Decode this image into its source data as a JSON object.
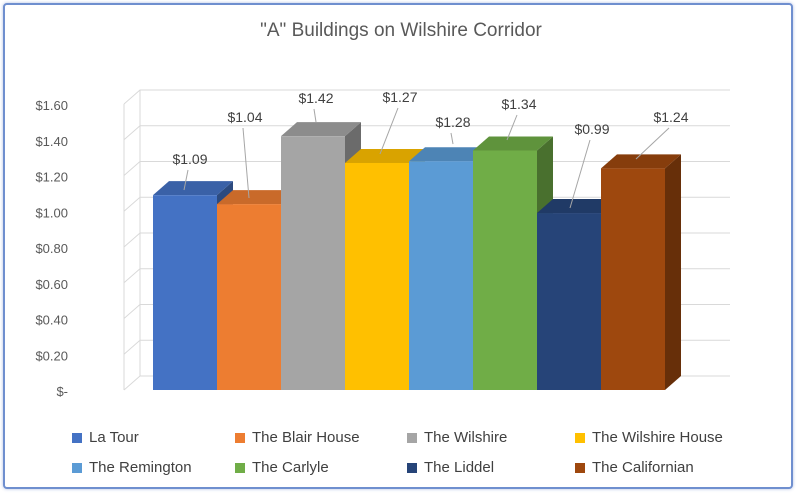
{
  "chart_data": {
    "type": "bar",
    "title": "\"A\" Buildings on Wilshire Corridor",
    "xlabel": "",
    "ylabel": "",
    "ylim": [
      0,
      1.6
    ],
    "yticks": [
      {
        "value": 0,
        "label": "$-"
      },
      {
        "value": 0.2,
        "label": "$0.20"
      },
      {
        "value": 0.4,
        "label": "$0.40"
      },
      {
        "value": 0.6,
        "label": "$0.60"
      },
      {
        "value": 0.8,
        "label": "$0.80"
      },
      {
        "value": 1.0,
        "label": "$1.00"
      },
      {
        "value": 1.2,
        "label": "$1.20"
      },
      {
        "value": 1.4,
        "label": "$1.40"
      },
      {
        "value": 1.6,
        "label": "$1.60"
      }
    ],
    "grid": true,
    "legend_position": "bottom",
    "series": [
      {
        "name": "La Tour",
        "value": 1.09,
        "label": "$1.09",
        "color": "#4472c4"
      },
      {
        "name": "The Blair House",
        "value": 1.04,
        "label": "$1.04",
        "color": "#ed7d31"
      },
      {
        "name": "The Wilshire",
        "value": 1.42,
        "label": "$1.42",
        "color": "#a5a5a5"
      },
      {
        "name": "The Wilshire House",
        "value": 1.27,
        "label": "$1.27",
        "color": "#ffc000"
      },
      {
        "name": "The Remington",
        "value": 1.28,
        "label": "$1.28",
        "color": "#5b9bd5"
      },
      {
        "name": "The Carlyle",
        "value": 1.34,
        "label": "$1.34",
        "color": "#70ad47"
      },
      {
        "name": "The Liddel",
        "value": 0.99,
        "label": "$0.99",
        "color": "#264478"
      },
      {
        "name": "The Californian",
        "value": 1.24,
        "label": "$1.24",
        "color": "#9e480e"
      }
    ]
  }
}
